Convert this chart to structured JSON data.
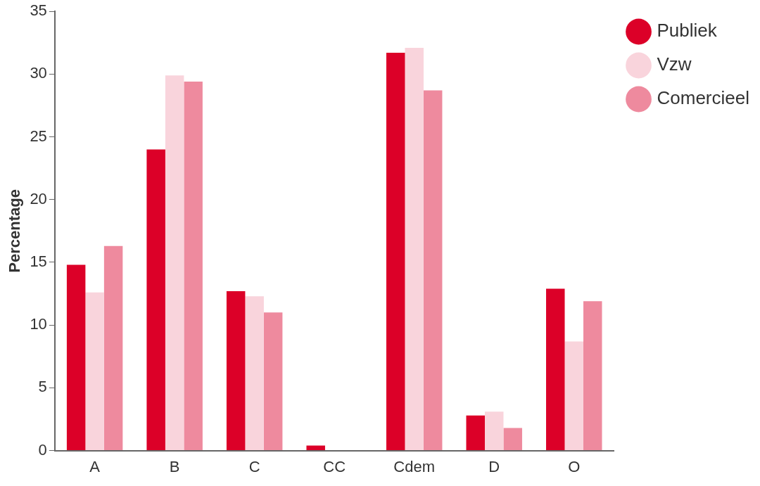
{
  "chart_data": {
    "type": "bar",
    "ylabel": "Percentage",
    "categories": [
      "A",
      "B",
      "C",
      "CC",
      "Cdem",
      "D",
      "O"
    ],
    "series": [
      {
        "name": "Publiek",
        "color": "#dc0028",
        "values": [
          14.8,
          24.0,
          12.7,
          0.4,
          31.7,
          2.8,
          12.9
        ]
      },
      {
        "name": "Vzw",
        "color": "#f9d4dc",
        "values": [
          12.6,
          29.9,
          12.3,
          0,
          32.1,
          3.1,
          8.7
        ]
      },
      {
        "name": "Comercieel",
        "color": "#ee8a9e",
        "values": [
          16.3,
          29.4,
          11.0,
          0,
          28.7,
          1.8,
          11.9
        ]
      }
    ],
    "ylim": [
      0,
      35
    ],
    "yticks": [
      0,
      5,
      10,
      15,
      20,
      25,
      30,
      35
    ],
    "grid": false,
    "legend": "right"
  }
}
